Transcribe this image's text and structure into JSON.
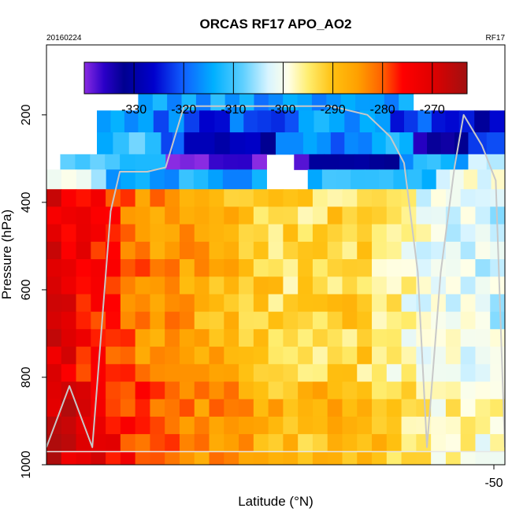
{
  "chart_data": {
    "type": "heatmap",
    "title": "ORCAS RF17 APO_AO2",
    "date_label": "20160224",
    "flight_label": "RF17",
    "xlabel": "Latitude (°N)",
    "ylabel": "Pressure (hPa)",
    "x_ticks": [
      -50
    ],
    "y_ticks": [
      200,
      400,
      600,
      800,
      1000
    ],
    "ylim": [
      1000,
      40
    ],
    "colorbar": {
      "range": [
        -340,
        -263
      ],
      "ticks": [
        -330,
        -320,
        -310,
        -300,
        -290,
        -280,
        -270
      ],
      "stops": [
        {
          "v": -340,
          "c": "#8a2be2"
        },
        {
          "v": -336,
          "c": "#2a00c8"
        },
        {
          "v": -332,
          "c": "#000090"
        },
        {
          "v": -326,
          "c": "#0000cd"
        },
        {
          "v": -320,
          "c": "#1060ff"
        },
        {
          "v": -314,
          "c": "#00b0ff"
        },
        {
          "v": -308,
          "c": "#60d0ff"
        },
        {
          "v": -303,
          "c": "#d8f4ff"
        },
        {
          "v": -299,
          "c": "#ffffe8"
        },
        {
          "v": -295,
          "c": "#ffee70"
        },
        {
          "v": -290,
          "c": "#ffc010"
        },
        {
          "v": -285,
          "c": "#ffa000"
        },
        {
          "v": -280,
          "c": "#ff6000"
        },
        {
          "v": -276,
          "c": "#ff0000"
        },
        {
          "v": -270,
          "c": "#e00000"
        },
        {
          "v": -263,
          "c": "#a01010"
        }
      ]
    },
    "upper_rows": [
      {
        "p": [
          145,
          190
        ],
        "x0": 20,
        "x1": 80,
        "v": -315
      },
      {
        "p": [
          190,
          240
        ],
        "x0": 11,
        "x1": 20,
        "v": -314
      },
      {
        "p": [
          190,
          240
        ],
        "x0": 20,
        "x1": 30,
        "v": -318
      },
      {
        "p": [
          190,
          240
        ],
        "x0": 30,
        "x1": 40,
        "v": -323
      },
      {
        "p": [
          190,
          240
        ],
        "x0": 40,
        "x1": 55,
        "v": -320
      },
      {
        "p": [
          190,
          240
        ],
        "x0": 55,
        "x1": 75,
        "v": -316
      },
      {
        "p": [
          190,
          240
        ],
        "x0": 75,
        "x1": 90,
        "v": -322
      },
      {
        "p": [
          190,
          240
        ],
        "x0": 90,
        "x1": 100,
        "v": -327
      },
      {
        "p": [
          240,
          290
        ],
        "x0": 11,
        "x1": 25,
        "v": -311
      },
      {
        "p": [
          240,
          290
        ],
        "x0": 25,
        "x1": 30,
        "v": -320
      },
      {
        "p": [
          240,
          290
        ],
        "x0": 30,
        "x1": 50,
        "v": -330
      },
      {
        "p": [
          240,
          290
        ],
        "x0": 50,
        "x1": 65,
        "v": -318
      },
      {
        "p": [
          240,
          290
        ],
        "x0": 65,
        "x1": 80,
        "v": -314
      },
      {
        "p": [
          240,
          290
        ],
        "x0": 80,
        "x1": 92,
        "v": -332
      },
      {
        "p": [
          240,
          290
        ],
        "x0": 92,
        "x1": 100,
        "v": -320
      },
      {
        "p": [
          290,
          325
        ],
        "x0": 3,
        "x1": 16,
        "v": -308
      },
      {
        "p": [
          290,
          325
        ],
        "x0": 16,
        "x1": 26,
        "v": -312
      },
      {
        "p": [
          290,
          325
        ],
        "x0": 26,
        "x1": 48,
        "v": -338
      },
      {
        "p": [
          290,
          325
        ],
        "x0": 54,
        "x1": 77,
        "v": -334
      },
      {
        "p": [
          290,
          325
        ],
        "x0": 77,
        "x1": 92,
        "v": -314
      },
      {
        "p": [
          290,
          325
        ],
        "x0": 92,
        "x1": 100,
        "v": -304
      },
      {
        "p": [
          325,
          370
        ],
        "x0": 0,
        "x1": 13,
        "v": -303
      },
      {
        "p": [
          325,
          370
        ],
        "x0": 13,
        "x1": 48,
        "v": -314
      },
      {
        "p": [
          325,
          370
        ],
        "x0": 57,
        "x1": 85,
        "v": -312
      },
      {
        "p": [
          325,
          370
        ],
        "x0": 85,
        "x1": 100,
        "v": -300
      }
    ],
    "lower_zones": [
      {
        "x": 0,
        "v": -270
      },
      {
        "x": 10,
        "v": -276
      },
      {
        "x": 22,
        "v": -283
      },
      {
        "x": 40,
        "v": -289
      },
      {
        "x": 55,
        "v": -294
      },
      {
        "x": 68,
        "v": -292
      },
      {
        "x": 82,
        "v": -300
      },
      {
        "x": 100,
        "v": -303
      }
    ],
    "flight_track": [
      [
        0,
        960
      ],
      [
        5,
        820
      ],
      [
        10,
        960
      ],
      [
        14,
        420
      ],
      [
        16,
        330
      ],
      [
        22,
        330
      ],
      [
        26,
        320
      ],
      [
        30,
        180
      ],
      [
        55,
        180
      ],
      [
        62,
        180
      ],
      [
        70,
        200
      ],
      [
        75,
        250
      ],
      [
        78,
        310
      ],
      [
        81,
        560
      ],
      [
        83,
        960
      ],
      [
        86,
        560
      ],
      [
        89,
        320
      ],
      [
        91,
        200
      ],
      [
        95,
        270
      ],
      [
        98,
        350
      ],
      [
        100,
        960
      ]
    ]
  }
}
